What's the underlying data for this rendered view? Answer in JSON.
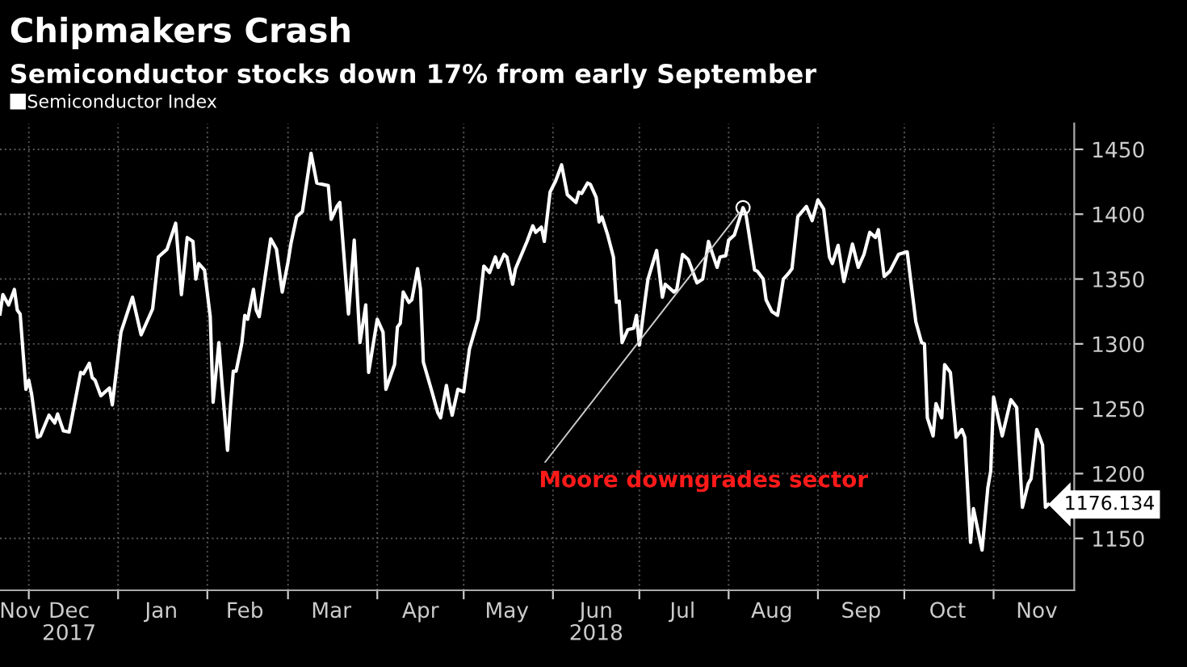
{
  "chart_data": {
    "type": "line",
    "title": "Chipmakers Crash",
    "subtitle": "Semiconductor stocks down 17% from early September",
    "annotations": [
      {
        "text": "Moore downgrades sector",
        "x": "2018-08-06",
        "y": 1405
      }
    ],
    "legend": "top left",
    "grid": true,
    "marker": "none",
    "line_style": "solid",
    "xlim": [
      "2017-11-21",
      "2018-11-29"
    ],
    "ylim": [
      1110,
      1470
    ],
    "yticks": [
      1150,
      1200,
      1250,
      1300,
      1350,
      1400,
      1450
    ],
    "xticks": [
      {
        "value": "2017-11-28",
        "label": "Nov"
      },
      {
        "value": "2017-12-01",
        "label": null
      },
      {
        "value": "2017-12-15",
        "label": "Dec\n2017"
      },
      {
        "value": "2018-01-01",
        "label": null
      },
      {
        "value": "2018-01-16",
        "label": "Jan"
      },
      {
        "value": "2018-02-01",
        "label": null
      },
      {
        "value": "2018-02-14",
        "label": "Feb"
      },
      {
        "value": "2018-03-01",
        "label": null
      },
      {
        "value": "2018-03-16",
        "label": "Mar"
      },
      {
        "value": "2018-04-01",
        "label": null
      },
      {
        "value": "2018-04-16",
        "label": "Apr"
      },
      {
        "value": "2018-05-01",
        "label": null
      },
      {
        "value": "2018-05-16",
        "label": "May"
      },
      {
        "value": "2018-06-01",
        "label": null
      },
      {
        "value": "2018-06-16",
        "label": "Jun\n2018"
      },
      {
        "value": "2018-07-01",
        "label": null
      },
      {
        "value": "2018-07-16",
        "label": "Jul"
      },
      {
        "value": "2018-08-01",
        "label": null
      },
      {
        "value": "2018-08-16",
        "label": "Aug"
      },
      {
        "value": "2018-09-01",
        "label": null
      },
      {
        "value": "2018-09-16",
        "label": "Sep"
      },
      {
        "value": "2018-10-01",
        "label": null
      },
      {
        "value": "2018-10-16",
        "label": "Oct"
      },
      {
        "value": "2018-11-01",
        "label": null
      },
      {
        "value": "2018-11-16",
        "label": "Nov"
      }
    ],
    "x": [
      "2017-11-21",
      "2017-11-22",
      "2017-11-24",
      "2017-11-26",
      "2017-11-27",
      "2017-11-28",
      "2017-11-30",
      "2017-12-01",
      "2017-12-02",
      "2017-12-04",
      "2017-12-05",
      "2017-12-08",
      "2017-12-10",
      "2017-12-11",
      "2017-12-13",
      "2017-12-15",
      "2017-12-19",
      "2017-12-20",
      "2017-12-22",
      "2017-12-23",
      "2017-12-24",
      "2017-12-26",
      "2017-12-29",
      "2017-12-30",
      "2018-01-02",
      "2018-01-06",
      "2018-01-09",
      "2018-01-13",
      "2018-01-15",
      "2018-01-18",
      "2018-01-21",
      "2018-01-23",
      "2018-01-25",
      "2018-01-27",
      "2018-01-28",
      "2018-01-29",
      "2018-01-31",
      "2018-02-02",
      "2018-02-03",
      "2018-02-05",
      "2018-02-06",
      "2018-02-08",
      "2018-02-09",
      "2018-02-10",
      "2018-02-11",
      "2018-02-13",
      "2018-02-14",
      "2018-02-15",
      "2018-02-17",
      "2018-02-18",
      "2018-02-19",
      "2018-02-23",
      "2018-02-25",
      "2018-02-27",
      "2018-03-01",
      "2018-03-02",
      "2018-03-04",
      "2018-03-06",
      "2018-03-09",
      "2018-03-11",
      "2018-03-15",
      "2018-03-16",
      "2018-03-18",
      "2018-03-19",
      "2018-03-22",
      "2018-03-24",
      "2018-03-26",
      "2018-03-28",
      "2018-03-29",
      "2018-04-01",
      "2018-04-03",
      "2018-04-04",
      "2018-04-07",
      "2018-04-08",
      "2018-04-09",
      "2018-04-10",
      "2018-04-12",
      "2018-04-13",
      "2018-04-15",
      "2018-04-16",
      "2018-04-17",
      "2018-04-20",
      "2018-04-22",
      "2018-04-23",
      "2018-04-25",
      "2018-04-26",
      "2018-04-27",
      "2018-04-29",
      "2018-05-01",
      "2018-05-03",
      "2018-05-06",
      "2018-05-08",
      "2018-05-10",
      "2018-05-12",
      "2018-05-13",
      "2018-05-15",
      "2018-05-16",
      "2018-05-18",
      "2018-05-19",
      "2018-05-23",
      "2018-05-25",
      "2018-05-26",
      "2018-05-28",
      "2018-05-29",
      "2018-05-31",
      "2018-06-02",
      "2018-06-04",
      "2018-06-06",
      "2018-06-09",
      "2018-06-10",
      "2018-06-11",
      "2018-06-13",
      "2018-06-14",
      "2018-06-16",
      "2018-06-17",
      "2018-06-18",
      "2018-06-20",
      "2018-06-22",
      "2018-06-23",
      "2018-06-24",
      "2018-06-25",
      "2018-06-27",
      "2018-06-29",
      "2018-06-30",
      "2018-07-01",
      "2018-07-03",
      "2018-07-04",
      "2018-07-07",
      "2018-07-09",
      "2018-07-10",
      "2018-07-13",
      "2018-07-14",
      "2018-07-16",
      "2018-07-17",
      "2018-07-18",
      "2018-07-21",
      "2018-07-23",
      "2018-07-25",
      "2018-07-26",
      "2018-07-28",
      "2018-07-29",
      "2018-07-31",
      "2018-08-01",
      "2018-08-03",
      "2018-08-05",
      "2018-08-06",
      "2018-08-07",
      "2018-08-10",
      "2018-08-11",
      "2018-08-13",
      "2018-08-14",
      "2018-08-16",
      "2018-08-18",
      "2018-08-20",
      "2018-08-22",
      "2018-08-23",
      "2018-08-25",
      "2018-08-28",
      "2018-08-30",
      "2018-09-01",
      "2018-09-03",
      "2018-09-05",
      "2018-09-06",
      "2018-09-08",
      "2018-09-10",
      "2018-09-13",
      "2018-09-15",
      "2018-09-17",
      "2018-09-19",
      "2018-09-21",
      "2018-09-22",
      "2018-09-24",
      "2018-09-26",
      "2018-09-29",
      "2018-10-02",
      "2018-10-05",
      "2018-10-07",
      "2018-10-08",
      "2018-10-09",
      "2018-10-11",
      "2018-10-12",
      "2018-10-14",
      "2018-10-15",
      "2018-10-17",
      "2018-10-19",
      "2018-10-21",
      "2018-10-22",
      "2018-10-24",
      "2018-10-25",
      "2018-10-28",
      "2018-10-30",
      "2018-10-31",
      "2018-11-01",
      "2018-11-04",
      "2018-11-07",
      "2018-11-09",
      "2018-11-11",
      "2018-11-13",
      "2018-11-14",
      "2018-11-16",
      "2018-11-18",
      "2018-11-19",
      "2018-11-20"
    ],
    "series": [
      {
        "name": "Semiconductor Index",
        "color": "#ffffff",
        "values": [
          1323,
          1338,
          1330,
          1342,
          1326,
          1323,
          1265,
          1272,
          1261,
          1228,
          1229,
          1245,
          1239,
          1246,
          1233,
          1232,
          1278,
          1277,
          1285,
          1274,
          1272,
          1260,
          1266,
          1253,
          1309,
          1336,
          1307,
          1327,
          1367,
          1373,
          1393,
          1338,
          1382,
          1379,
          1350,
          1362,
          1357,
          1321,
          1255,
          1301,
          1272,
          1218,
          1251,
          1279,
          1279,
          1301,
          1322,
          1319,
          1342,
          1326,
          1321,
          1381,
          1373,
          1340,
          1363,
          1377,
          1398,
          1402,
          1447,
          1424,
          1422,
          1396,
          1406,
          1409,
          1323,
          1380,
          1301,
          1330,
          1278,
          1319,
          1309,
          1265,
          1284,
          1313,
          1316,
          1340,
          1332,
          1334,
          1358,
          1342,
          1286,
          1263,
          1247,
          1243,
          1268,
          1255,
          1245,
          1265,
          1263,
          1296,
          1319,
          1360,
          1355,
          1367,
          1359,
          1369,
          1367,
          1346,
          1358,
          1379,
          1391,
          1386,
          1390,
          1379,
          1417,
          1426,
          1438,
          1415,
          1409,
          1417,
          1416,
          1424,
          1423,
          1413,
          1394,
          1398,
          1384,
          1367,
          1332,
          1333,
          1301,
          1311,
          1312,
          1322,
          1299,
          1334,
          1350,
          1372,
          1336,
          1346,
          1340,
          1342,
          1369,
          1367,
          1365,
          1347,
          1350,
          1379,
          1372,
          1359,
          1367,
          1368,
          1380,
          1384,
          1398,
          1405,
          1400,
          1357,
          1356,
          1350,
          1334,
          1325,
          1322,
          1350,
          1355,
          1358,
          1398,
          1406,
          1395,
          1411,
          1404,
          1367,
          1362,
          1376,
          1348,
          1377,
          1359,
          1369,
          1386,
          1382,
          1388,
          1352,
          1356,
          1369,
          1371,
          1317,
          1301,
          1300,
          1243,
          1229,
          1254,
          1243,
          1284,
          1278,
          1228,
          1234,
          1228,
          1147,
          1173,
          1141,
          1189,
          1202,
          1259,
          1229,
          1257,
          1251,
          1174,
          1192,
          1196,
          1234,
          1222,
          1174,
          1176.134
        ],
        "value_labels": [
          null,
          null,
          null,
          null,
          null,
          null,
          null,
          null,
          null,
          null,
          null,
          null,
          null,
          null,
          null,
          null,
          null,
          null,
          null,
          null,
          null,
          null,
          null,
          null,
          null,
          null,
          null,
          null,
          null,
          null,
          null,
          null,
          null,
          null,
          null,
          null,
          null,
          null,
          null,
          null,
          null,
          null,
          null,
          null,
          null,
          null,
          null,
          null,
          null,
          null,
          null,
          null,
          null,
          null,
          null,
          null,
          null,
          null,
          null,
          null,
          null,
          null,
          null,
          null,
          null,
          null,
          null,
          null,
          null,
          null,
          null,
          null,
          null,
          null,
          null,
          null,
          null,
          null,
          null,
          null,
          null,
          null,
          null,
          null,
          null,
          null,
          null,
          null,
          null,
          null,
          null,
          null,
          null,
          null,
          null,
          null,
          null,
          null,
          null,
          null,
          null,
          null,
          null,
          null,
          null,
          null,
          null,
          null,
          null,
          null,
          null,
          null,
          null,
          null,
          null,
          null,
          null,
          null,
          null,
          null,
          null,
          null,
          null,
          null,
          null,
          null,
          null,
          null,
          null,
          null,
          null,
          null,
          null,
          null,
          null,
          null,
          null,
          null,
          null,
          null,
          null,
          null,
          null,
          null,
          null,
          null,
          null,
          null,
          null,
          null,
          null,
          null,
          null,
          null,
          null,
          null,
          null,
          null,
          null,
          null,
          null,
          null,
          null,
          null,
          null,
          null,
          null,
          null,
          null,
          null,
          null,
          null,
          null,
          null,
          null,
          null,
          null,
          null,
          null,
          null,
          null,
          null,
          null,
          null,
          null,
          null,
          null,
          null,
          null,
          null,
          null,
          null,
          null,
          null,
          null,
          null,
          null,
          null,
          null,
          null,
          null,
          null,
          "1176.134"
        ]
      }
    ]
  }
}
